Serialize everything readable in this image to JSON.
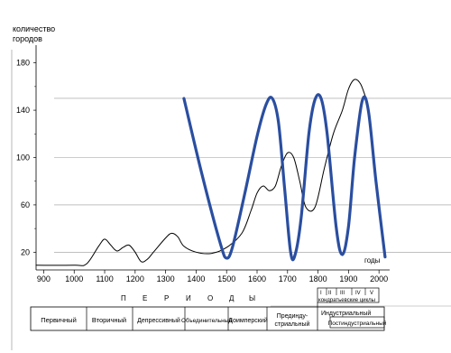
{
  "chart_data": {
    "type": "line",
    "ylabel_lines": [
      "количество",
      "городов"
    ],
    "xlabel": "годы",
    "x_ticks": [
      900,
      1000,
      1100,
      1200,
      1300,
      1400,
      1500,
      1600,
      1700,
      1800,
      1900,
      2000
    ],
    "y_ticks": [
      20,
      60,
      100,
      140,
      180
    ],
    "xlim": [
      875,
      2035
    ],
    "ylim": [
      5,
      195
    ],
    "series": [
      {
        "key": "black-curve",
        "color": "#000000",
        "points": [
          [
            875,
            9
          ],
          [
            1000,
            9
          ],
          [
            1040,
            10
          ],
          [
            1080,
            25
          ],
          [
            1100,
            31
          ],
          [
            1120,
            26
          ],
          [
            1140,
            21
          ],
          [
            1160,
            24
          ],
          [
            1180,
            26
          ],
          [
            1200,
            20
          ],
          [
            1220,
            12
          ],
          [
            1240,
            14
          ],
          [
            1260,
            20
          ],
          [
            1300,
            32
          ],
          [
            1320,
            36
          ],
          [
            1340,
            33
          ],
          [
            1360,
            25
          ],
          [
            1400,
            20
          ],
          [
            1450,
            19
          ],
          [
            1500,
            24
          ],
          [
            1550,
            36
          ],
          [
            1580,
            55
          ],
          [
            1600,
            70
          ],
          [
            1620,
            76
          ],
          [
            1640,
            72
          ],
          [
            1660,
            76
          ],
          [
            1680,
            93
          ],
          [
            1700,
            104
          ],
          [
            1720,
            100
          ],
          [
            1740,
            80
          ],
          [
            1760,
            58
          ],
          [
            1790,
            58
          ],
          [
            1820,
            90
          ],
          [
            1850,
            120
          ],
          [
            1880,
            140
          ],
          [
            1900,
            158
          ],
          [
            1920,
            166
          ],
          [
            1940,
            162
          ],
          [
            1960,
            148
          ]
        ]
      },
      {
        "key": "blue-wave",
        "color": "#2a4ea0",
        "points": [
          [
            1360,
            150
          ],
          [
            1420,
            85
          ],
          [
            1480,
            27
          ],
          [
            1500,
            15
          ],
          [
            1520,
            25
          ],
          [
            1560,
            70
          ],
          [
            1600,
            118
          ],
          [
            1630,
            145
          ],
          [
            1650,
            150
          ],
          [
            1670,
            130
          ],
          [
            1690,
            75
          ],
          [
            1710,
            20
          ],
          [
            1725,
            18
          ],
          [
            1745,
            50
          ],
          [
            1770,
            120
          ],
          [
            1790,
            149
          ],
          [
            1810,
            150
          ],
          [
            1830,
            120
          ],
          [
            1860,
            40
          ],
          [
            1880,
            18
          ],
          [
            1900,
            42
          ],
          [
            1920,
            100
          ],
          [
            1945,
            148
          ],
          [
            1965,
            140
          ],
          [
            1990,
            80
          ],
          [
            2020,
            16
          ]
        ]
      }
    ],
    "grid": "horizontal lines at the right margin"
  },
  "periods": {
    "title_letters": [
      "П",
      "Е",
      "Р",
      "И",
      "О",
      "Д",
      "Ы"
    ],
    "labels": [
      "Первичный",
      "Вторичный",
      "Депрессивный",
      "Объединительный",
      "Доимперский"
    ],
    "preindustrial_lines": [
      "Прединду-",
      "стриальный"
    ],
    "industrial": "Индустриальный",
    "postindustrial": "Постиндустриальный",
    "roman_numerals": [
      "I",
      "II",
      "III",
      "IV",
      "V"
    ],
    "cycles_label": "кондратьевские  циклы"
  }
}
